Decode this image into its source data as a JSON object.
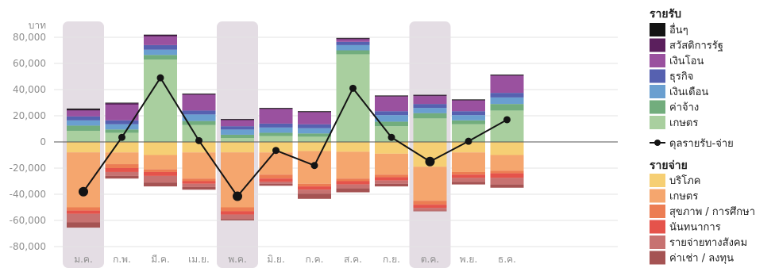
{
  "chart_data": {
    "type": "bar",
    "subtype": "stacked-diverging-bar-with-line",
    "ylabel": "บาท",
    "ylim": [
      -80000,
      80000
    ],
    "yticks": [
      80000,
      60000,
      40000,
      20000,
      0,
      -20000,
      -40000,
      -60000,
      -80000
    ],
    "ytick_labels": [
      "80,000",
      "60,000",
      "40,000",
      "20,000",
      "0",
      "-20,000",
      "-40,000",
      "-60,000",
      "-80,000"
    ],
    "grid": true,
    "legend_position": "right",
    "categories": [
      "ม.ค.",
      "ก.พ.",
      "มี.ค.",
      "เม.ย.",
      "พ.ค.",
      "มิ.ย.",
      "ก.ค.",
      "ส.ค.",
      "ก.ย.",
      "ต.ค.",
      "พ.ย.",
      "ธ.ค."
    ],
    "highlighted_categories": [
      "ม.ค.",
      "พ.ค.",
      "ต.ค."
    ],
    "highlight_color": "#e4dde4",
    "income_group_title": "รายรับ",
    "expense_group_title": "รายจ่าย",
    "income_series": [
      {
        "name": "เกษตร",
        "color": "#a9cf9f",
        "values": [
          8500,
          7000,
          63000,
          13000,
          3000,
          4500,
          4000,
          67000,
          12000,
          18000,
          13500,
          24000
        ]
      },
      {
        "name": "ค่าจ้าง",
        "color": "#72ad7d",
        "values": [
          4000,
          2500,
          3500,
          3000,
          2500,
          2500,
          2500,
          3000,
          3500,
          4000,
          3000,
          5000
        ]
      },
      {
        "name": "เงินเดือน",
        "color": "#6a9fd0",
        "values": [
          4000,
          4000,
          4000,
          5000,
          4000,
          4000,
          4000,
          4000,
          5000,
          4000,
          4000,
          5000
        ]
      },
      {
        "name": "ธุรกิจ",
        "color": "#5661b0",
        "values": [
          3000,
          3000,
          3500,
          3000,
          2500,
          3000,
          3000,
          2500,
          3000,
          3000,
          3000,
          3500
        ]
      },
      {
        "name": "เงินโอน",
        "color": "#9a519f",
        "values": [
          4500,
          12000,
          6500,
          12000,
          4500,
          11000,
          9000,
          2000,
          11000,
          6000,
          8000,
          13000
        ]
      },
      {
        "name": "สวัสดิการรัฐ",
        "color": "#5b1f5d",
        "values": [
          500,
          1000,
          1000,
          500,
          500,
          500,
          500,
          500,
          500,
          500,
          500,
          500
        ]
      },
      {
        "name": "อื่นๆ",
        "color": "#141414",
        "values": [
          1000,
          500,
          500,
          500,
          500,
          500,
          500,
          500,
          500,
          500,
          500,
          500
        ]
      }
    ],
    "expense_series": [
      {
        "name": "บริโภค",
        "color": "#f6cf74",
        "values": [
          -8000,
          -8000,
          -10000,
          -8000,
          -8000,
          -8000,
          -7000,
          -7500,
          -9000,
          -19000,
          -8000,
          -10000
        ]
      },
      {
        "name": "เกษตร",
        "color": "#f5a66e",
        "values": [
          -42000,
          -9000,
          -11000,
          -20000,
          -42000,
          -17000,
          -25000,
          -20500,
          -16000,
          -26000,
          -15000,
          -12000
        ]
      },
      {
        "name": "สุขภาพ / การศึกษา",
        "color": "#ec7d53",
        "values": [
          -2500,
          -3000,
          -2000,
          -2000,
          -3000,
          -3000,
          -2000,
          -2000,
          -2000,
          -3000,
          -2000,
          -2000
        ]
      },
      {
        "name": "นันทนาการ",
        "color": "#e5534b",
        "values": [
          -2500,
          -3000,
          -3000,
          -2000,
          -2500,
          -2500,
          -2500,
          -2500,
          -2500,
          -2500,
          -2500,
          -3500
        ]
      },
      {
        "name": "รายจ่ายทางสังคม",
        "color": "#c77271",
        "values": [
          -6500,
          -3000,
          -5000,
          -2500,
          -3500,
          -1500,
          -3000,
          -3000,
          -2500,
          -2000,
          -3000,
          -5000
        ]
      },
      {
        "name": "ค่าเช่า / ลงทุน",
        "color": "#a55353",
        "values": [
          -4000,
          -2000,
          -3000,
          -2000,
          -1000,
          -1500,
          -4000,
          -3000,
          -2000,
          -500,
          -2000,
          -2500
        ]
      }
    ],
    "net_series": {
      "name": "ดุลรายรับ-จ่าย",
      "color": "#141414",
      "values": [
        -38000,
        3500,
        49000,
        1000,
        -41500,
        -6500,
        -18000,
        41000,
        3500,
        -15000,
        500,
        17000
      ]
    }
  }
}
